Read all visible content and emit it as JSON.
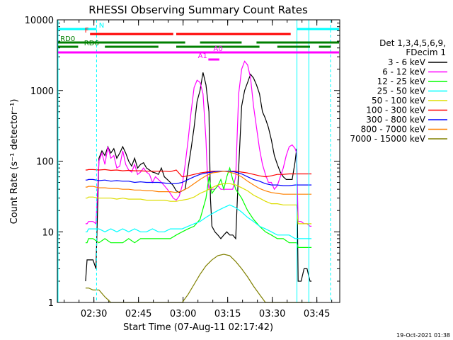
{
  "chart_data": {
    "type": "line",
    "title": "RHESSI Observing Summary Count Rates",
    "xlabel": "Start Time (07-Aug-11 02:17:42)",
    "ylabel": "Count Rate (s⁻¹ detector⁻¹)",
    "yscale": "log",
    "ylim": [
      1,
      10000
    ],
    "xlim_minutes": [
      0,
      95
    ],
    "x_ticks": [
      {
        "label": "02:30",
        "minutes": 12.3
      },
      {
        "label": "02:45",
        "minutes": 27.3
      },
      {
        "label": "03:00",
        "minutes": 42.3
      },
      {
        "label": "03:15",
        "minutes": 57.3
      },
      {
        "label": "03:30",
        "minutes": 72.3
      },
      {
        "label": "03:45",
        "minutes": 87.3
      }
    ],
    "y_ticks": [
      1,
      10,
      100,
      1000,
      10000
    ],
    "y_tick_labels": [
      "1",
      "10",
      "100",
      "1000",
      "10000"
    ],
    "legend_header": [
      "Det 1,3,4,5,6,9,",
      "FDecim 1"
    ],
    "legend_position": "right",
    "timestamp": "19-Oct-2021 01:38",
    "series": [
      {
        "name": "3 - 6 keV",
        "color": "#000000",
        "x": [
          9.5,
          10,
          10.5,
          12,
          13,
          14,
          15,
          16,
          17,
          18,
          19,
          20,
          21,
          22,
          23,
          24,
          25,
          26,
          27,
          28,
          29,
          30,
          31,
          32,
          33,
          34,
          35,
          36,
          37,
          38,
          39,
          40,
          41,
          42,
          43,
          44,
          45,
          46,
          47,
          48,
          49,
          50,
          51,
          51.5,
          52,
          53,
          54,
          55,
          56,
          57,
          58,
          59,
          60,
          61,
          62,
          63,
          64,
          65,
          66,
          67,
          68,
          69,
          70,
          71,
          72,
          73,
          74,
          75,
          76,
          77,
          78,
          79,
          80,
          80.5,
          81,
          82,
          83,
          84,
          85,
          85.5
        ],
        "y": [
          2,
          4,
          4,
          4,
          3,
          110,
          140,
          120,
          160,
          130,
          150,
          110,
          130,
          160,
          130,
          100,
          85,
          110,
          80,
          90,
          95,
          80,
          75,
          70,
          68,
          65,
          80,
          60,
          55,
          50,
          45,
          38,
          36,
          38,
          40,
          80,
          150,
          300,
          700,
          1000,
          1800,
          1200,
          500,
          30,
          12,
          10,
          9,
          8,
          9,
          10,
          9,
          9,
          8,
          80,
          600,
          1000,
          1300,
          1700,
          1500,
          1200,
          900,
          500,
          400,
          300,
          200,
          120,
          90,
          70,
          60,
          55,
          55,
          55,
          100,
          150,
          2,
          2,
          3,
          3,
          2,
          2
        ]
      },
      {
        "name": "6 - 12 keV",
        "color": "#ff00ff",
        "x": [
          9.5,
          10,
          10.5,
          12,
          13,
          14,
          15,
          16,
          17,
          18,
          19,
          20,
          21,
          22,
          23,
          24,
          25,
          26,
          27,
          28,
          29,
          30,
          31,
          32,
          33,
          34,
          35,
          36,
          37,
          38,
          39,
          40,
          41,
          42,
          43,
          44,
          45,
          46,
          47,
          48,
          49,
          50,
          50.5,
          51,
          52,
          53,
          54,
          55,
          56,
          57,
          58,
          59,
          60,
          61,
          62,
          63,
          64,
          65,
          66,
          67,
          68,
          69,
          70,
          71,
          72,
          73,
          74,
          75,
          76,
          77,
          78,
          79,
          80,
          80.5,
          81,
          82,
          83,
          84,
          85,
          85.5
        ],
        "y": [
          13,
          13,
          14,
          14,
          13,
          100,
          130,
          90,
          160,
          110,
          120,
          80,
          85,
          140,
          90,
          75,
          70,
          90,
          65,
          70,
          80,
          70,
          65,
          50,
          60,
          55,
          50,
          45,
          40,
          35,
          30,
          28,
          32,
          45,
          90,
          200,
          500,
          1100,
          1400,
          1300,
          900,
          200,
          60,
          40,
          40,
          40,
          45,
          40,
          40,
          40,
          40,
          40,
          60,
          900,
          2000,
          2600,
          2300,
          1500,
          600,
          300,
          150,
          90,
          65,
          50,
          50,
          40,
          45,
          60,
          80,
          120,
          160,
          170,
          150,
          130,
          14,
          14,
          13,
          13,
          12,
          12
        ]
      },
      {
        "name": "12 - 25 keV",
        "color": "#00ff00",
        "x": [
          9.5,
          10,
          10.5,
          12,
          14,
          16,
          18,
          20,
          22,
          24,
          26,
          28,
          30,
          32,
          34,
          36,
          38,
          40,
          42,
          44,
          46,
          48,
          50,
          51,
          52,
          53,
          54,
          55,
          56,
          57,
          58,
          59,
          60,
          62,
          64,
          66,
          68,
          70,
          72,
          74,
          76,
          78,
          80,
          80.5,
          81,
          83,
          85,
          85.5
        ],
        "y": [
          7,
          7,
          8,
          8,
          7,
          8,
          7,
          7,
          7,
          8,
          7,
          8,
          8,
          8,
          8,
          8,
          8,
          9,
          10,
          11,
          12,
          15,
          30,
          60,
          35,
          40,
          45,
          55,
          40,
          60,
          80,
          55,
          40,
          30,
          20,
          15,
          12,
          10,
          9,
          8,
          8,
          7,
          7,
          7,
          6,
          6,
          6,
          6
        ]
      },
      {
        "name": "25 - 50 keV",
        "color": "#00ffff",
        "x": [
          9.5,
          10,
          10.5,
          12,
          14,
          16,
          18,
          20,
          22,
          24,
          26,
          28,
          30,
          32,
          34,
          36,
          38,
          40,
          42,
          44,
          46,
          48,
          50,
          52,
          54,
          56,
          58,
          60,
          62,
          64,
          66,
          68,
          70,
          72,
          74,
          76,
          78,
          80,
          80.5,
          81,
          83,
          85,
          85.5
        ],
        "y": [
          10,
          10,
          11,
          11,
          11,
          10,
          11,
          10,
          11,
          10,
          11,
          10,
          10,
          11,
          10,
          10,
          11,
          11,
          11,
          12,
          13,
          14,
          16,
          18,
          20,
          22,
          24,
          22,
          19,
          16,
          14,
          12,
          11,
          10,
          9,
          9,
          9,
          8,
          8,
          8,
          8,
          8,
          8
        ]
      },
      {
        "name": "50 - 100 keV",
        "color": "#dddd00",
        "x": [
          9.5,
          10,
          10.5,
          12,
          14,
          16,
          18,
          20,
          22,
          24,
          26,
          28,
          30,
          32,
          34,
          36,
          38,
          40,
          42,
          44,
          46,
          48,
          50,
          52,
          54,
          56,
          58,
          60,
          62,
          64,
          66,
          68,
          70,
          72,
          74,
          76,
          78,
          80,
          80.5,
          81,
          83,
          85,
          85.5
        ],
        "y": [
          30,
          30,
          31,
          31,
          30,
          30,
          30,
          29,
          30,
          29,
          29,
          29,
          28,
          28,
          28,
          28,
          27,
          27,
          28,
          29,
          31,
          35,
          38,
          42,
          46,
          48,
          48,
          46,
          42,
          38,
          33,
          30,
          27,
          25,
          25,
          24,
          24,
          24,
          24,
          13,
          13,
          13,
          13
        ]
      },
      {
        "name": "100 - 300 keV",
        "color": "#ff0000",
        "x": [
          9.5,
          10,
          10.5,
          12,
          14,
          16,
          18,
          20,
          22,
          24,
          26,
          28,
          30,
          32,
          34,
          36,
          38,
          40,
          42,
          44,
          46,
          48,
          50,
          52,
          54,
          56,
          58,
          60,
          62,
          64,
          66,
          68,
          70,
          72,
          74,
          76,
          78,
          80,
          80.5,
          81,
          83,
          85,
          85.5
        ],
        "y": [
          75,
          75,
          76,
          76,
          75,
          76,
          74,
          75,
          73,
          74,
          73,
          73,
          72,
          72,
          72,
          72,
          71,
          75,
          60,
          62,
          65,
          68,
          70,
          72,
          72,
          72,
          72,
          72,
          70,
          68,
          65,
          62,
          60,
          62,
          65,
          65,
          66,
          66,
          66,
          66,
          66,
          66,
          66
        ]
      },
      {
        "name": "300 - 800 keV",
        "color": "#0000ff",
        "x": [
          9.5,
          10,
          10.5,
          12,
          14,
          16,
          18,
          20,
          22,
          24,
          26,
          28,
          30,
          32,
          34,
          36,
          38,
          40,
          42,
          44,
          46,
          48,
          50,
          52,
          54,
          56,
          58,
          60,
          62,
          64,
          66,
          68,
          70,
          72,
          74,
          76,
          78,
          80,
          80.5,
          81,
          83,
          85,
          85.5
        ],
        "y": [
          54,
          54,
          55,
          55,
          53,
          54,
          52,
          53,
          52,
          52,
          50,
          51,
          50,
          50,
          50,
          49,
          48,
          48,
          50,
          55,
          60,
          65,
          68,
          70,
          72,
          72,
          72,
          70,
          66,
          60,
          55,
          52,
          48,
          46,
          46,
          45,
          45,
          46,
          46,
          46,
          46,
          46,
          46
        ]
      },
      {
        "name": "800 - 7000 keV",
        "color": "#ff8000",
        "x": [
          9.5,
          10,
          10.5,
          12,
          14,
          16,
          18,
          20,
          22,
          24,
          26,
          28,
          30,
          32,
          34,
          36,
          38,
          40,
          42,
          44,
          46,
          48,
          50,
          52,
          54,
          56,
          58,
          60,
          62,
          64,
          66,
          68,
          70,
          72,
          74,
          76,
          78,
          80,
          80.5,
          81,
          83,
          85,
          85.5
        ],
        "y": [
          43,
          43,
          44,
          44,
          42,
          42,
          41,
          41,
          40,
          40,
          39,
          39,
          38,
          38,
          37,
          37,
          37,
          36,
          38,
          42,
          48,
          55,
          62,
          68,
          70,
          72,
          70,
          66,
          60,
          52,
          46,
          41,
          38,
          36,
          35,
          34,
          34,
          34,
          34,
          34,
          34,
          34,
          34
        ]
      },
      {
        "name": "7000 - 15000 keV",
        "color": "#808000",
        "x": [
          9.5,
          10,
          10.5,
          12,
          14,
          16,
          18,
          20,
          22,
          24,
          26,
          28,
          30,
          32,
          34,
          36,
          38,
          40,
          42,
          44,
          46,
          48,
          50,
          52,
          54,
          56,
          58,
          60,
          62,
          64,
          66,
          68,
          70,
          72,
          74,
          76,
          78,
          80,
          80.5,
          81,
          83,
          85,
          85.5
        ],
        "y": [
          1.6,
          1.6,
          1.6,
          1.5,
          1.5,
          1.2,
          1,
          1,
          1,
          1,
          1,
          1,
          1,
          1,
          1,
          1,
          1,
          1,
          1,
          1.3,
          1.8,
          2.5,
          3.3,
          4,
          4.6,
          4.8,
          4.6,
          3.8,
          3,
          2.3,
          1.7,
          1.3,
          1,
          1,
          1,
          1,
          1,
          1,
          1,
          1,
          1,
          1,
          1
        ]
      }
    ],
    "annotations": {
      "states": [
        {
          "label": "N",
          "color": "#00ffff",
          "y": 41,
          "segments": [
            [
              0,
              13.2
            ],
            [
              80.6,
              95
            ]
          ],
          "label_x": 14
        },
        {
          "label": "F",
          "color": "#ff0000",
          "y": 48,
          "segments": [
            [
              11,
              39
            ],
            [
              40,
              78.5
            ]
          ],
          "label_x": 9.2
        },
        {
          "label": "RD0",
          "color": "#008000",
          "y": 60,
          "segments": [
            [
              0,
              43
            ],
            [
              48,
              62
            ],
            [
              67,
              95
            ]
          ],
          "label_x": 1
        },
        {
          "label": "RD6",
          "color": "#008000",
          "y": 66,
          "segments": [
            [
              0,
              7
            ],
            [
              16,
              34
            ],
            [
              40,
              68
            ],
            [
              74,
              85
            ],
            [
              88,
              92
            ]
          ],
          "label_x": 9
        },
        {
          "label": "A0",
          "color": "#ff00ff",
          "y": 74,
          "segments": [
            [
              0,
              95
            ]
          ],
          "label_x": 52.5
        },
        {
          "label": "A1",
          "color": "#ff00ff",
          "y": 84,
          "segments": [
            [
              50.8,
              54.5
            ]
          ],
          "label_x": 47.3
        }
      ],
      "vlines_solid": [
        0,
        80.6,
        84.6
      ],
      "vlines_dashed": [
        13.2,
        91.9
      ]
    }
  }
}
